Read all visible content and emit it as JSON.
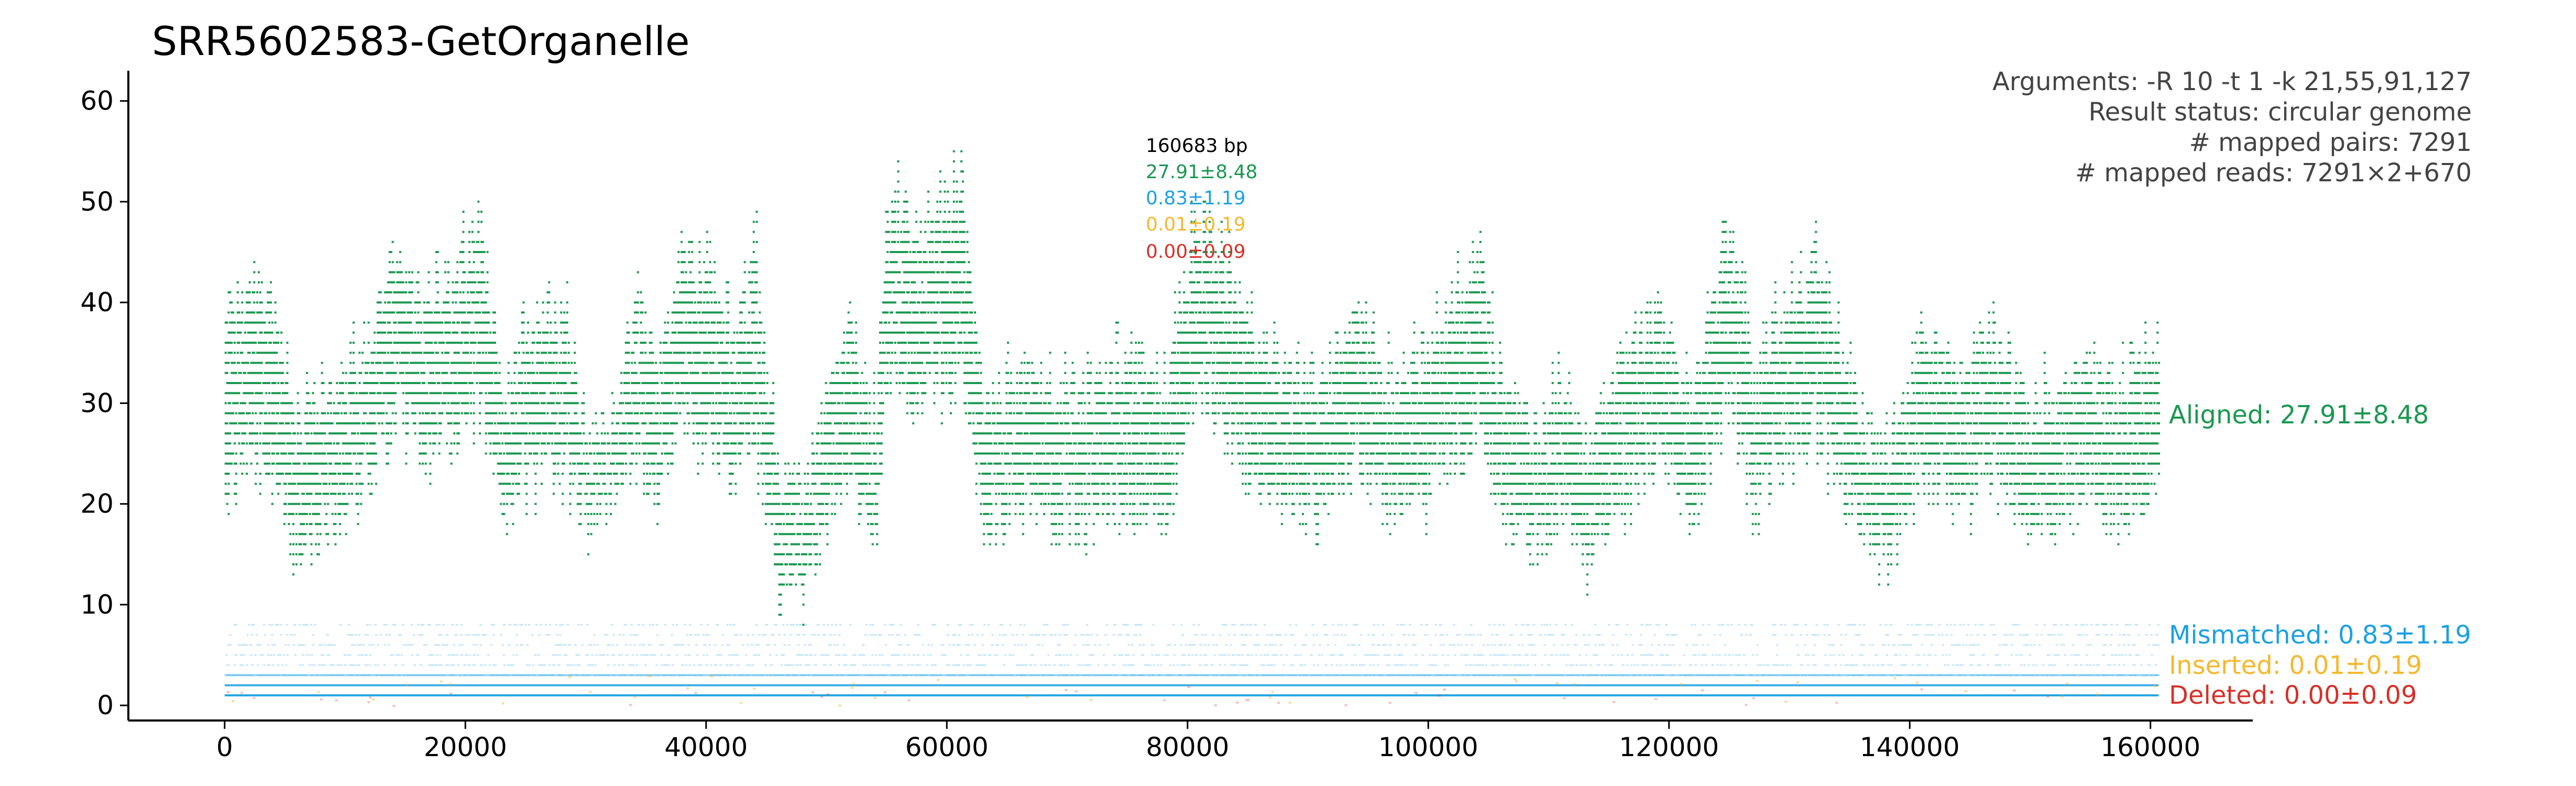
{
  "chart_data": {
    "type": "scatter",
    "title": "SRR5602583-GetOrganelle",
    "xlabel": "",
    "ylabel": "",
    "xlim": [
      -8000,
      168500
    ],
    "ylim": [
      -1.5,
      63
    ],
    "x_ticks": [
      0,
      20000,
      40000,
      60000,
      80000,
      100000,
      120000,
      140000,
      160000
    ],
    "y_ticks": [
      0,
      10,
      20,
      30,
      40,
      50,
      60
    ],
    "grid": false,
    "genome_length": 160683,
    "info_lines": [
      "Arguments: -R 10 -t 1 -k 21,55,91,127",
      "Result status: circular genome",
      "# mapped pairs: 7291",
      "# mapped reads: 7291×2+670"
    ],
    "center_labels": [
      {
        "text": "160683 bp",
        "color": "#000000"
      },
      {
        "text": "27.91±8.48",
        "color": "#1a9850"
      },
      {
        "text": "0.83±1.19",
        "color": "#1ba1e2"
      },
      {
        "text": "0.01±0.19",
        "color": "#f5b82e"
      },
      {
        "text": "0.00±0.09",
        "color": "#d73027"
      }
    ],
    "series": [
      {
        "name": "Aligned: 27.91±8.48",
        "color": "#1a9850",
        "mean": 27.91,
        "sd": 8.48,
        "profile": [
          [
            0,
            30,
            10
          ],
          [
            3000,
            33,
            9
          ],
          [
            6000,
            22,
            7
          ],
          [
            9000,
            24,
            7
          ],
          [
            12000,
            30,
            8
          ],
          [
            14000,
            36,
            9
          ],
          [
            17000,
            32,
            8
          ],
          [
            19000,
            34,
            9
          ],
          [
            21000,
            38,
            10
          ],
          [
            23000,
            24,
            7
          ],
          [
            25000,
            29,
            8
          ],
          [
            28000,
            31,
            8
          ],
          [
            30000,
            23,
            5
          ],
          [
            32000,
            23,
            4
          ],
          [
            34000,
            33,
            8
          ],
          [
            36000,
            27,
            7
          ],
          [
            38000,
            36,
            9
          ],
          [
            40000,
            34,
            9
          ],
          [
            42000,
            30,
            8
          ],
          [
            44000,
            35,
            10
          ],
          [
            46000,
            17,
            6
          ],
          [
            48000,
            15,
            5
          ],
          [
            50000,
            25,
            7
          ],
          [
            52000,
            30,
            8
          ],
          [
            54000,
            22,
            7
          ],
          [
            55000,
            42,
            10
          ],
          [
            58000,
            38,
            9
          ],
          [
            61000,
            42,
            10
          ],
          [
            63000,
            24,
            7
          ],
          [
            66000,
            26,
            7
          ],
          [
            69000,
            24,
            7
          ],
          [
            72000,
            25,
            7
          ],
          [
            76000,
            28,
            8
          ],
          [
            78000,
            24,
            7
          ],
          [
            80000,
            37,
            9
          ],
          [
            82000,
            38,
            9
          ],
          [
            85000,
            30,
            8
          ],
          [
            88000,
            26,
            7
          ],
          [
            91000,
            25,
            7
          ],
          [
            94000,
            32,
            8
          ],
          [
            97000,
            25,
            7
          ],
          [
            100000,
            28,
            8
          ],
          [
            104000,
            36,
            9
          ],
          [
            106000,
            26,
            7
          ],
          [
            109000,
            21,
            6
          ],
          [
            111000,
            25,
            7
          ],
          [
            113000,
            19,
            6
          ],
          [
            116000,
            28,
            8
          ],
          [
            119000,
            31,
            8
          ],
          [
            122000,
            25,
            7
          ],
          [
            125000,
            40,
            10
          ],
          [
            127000,
            26,
            7
          ],
          [
            130000,
            33,
            8
          ],
          [
            132000,
            36,
            9
          ],
          [
            135000,
            26,
            7
          ],
          [
            137000,
            20,
            6
          ],
          [
            139000,
            22,
            6
          ],
          [
            141000,
            30,
            8
          ],
          [
            144000,
            26,
            7
          ],
          [
            147000,
            30,
            8
          ],
          [
            150000,
            23,
            6
          ],
          [
            152000,
            25,
            7
          ],
          [
            155000,
            28,
            8
          ],
          [
            157000,
            24,
            7
          ],
          [
            160683,
            28,
            8
          ]
        ]
      },
      {
        "name": "Mismatched: 0.83±1.19",
        "color": "#1ba1e2",
        "mean": 0.83,
        "sd": 1.19
      },
      {
        "name": "Inserted: 0.01±0.19",
        "color": "#f5b82e",
        "mean": 0.01,
        "sd": 0.19
      },
      {
        "name": "Deleted: 0.00±0.09",
        "color": "#d73027",
        "mean": 0.0,
        "sd": 0.09
      }
    ]
  }
}
